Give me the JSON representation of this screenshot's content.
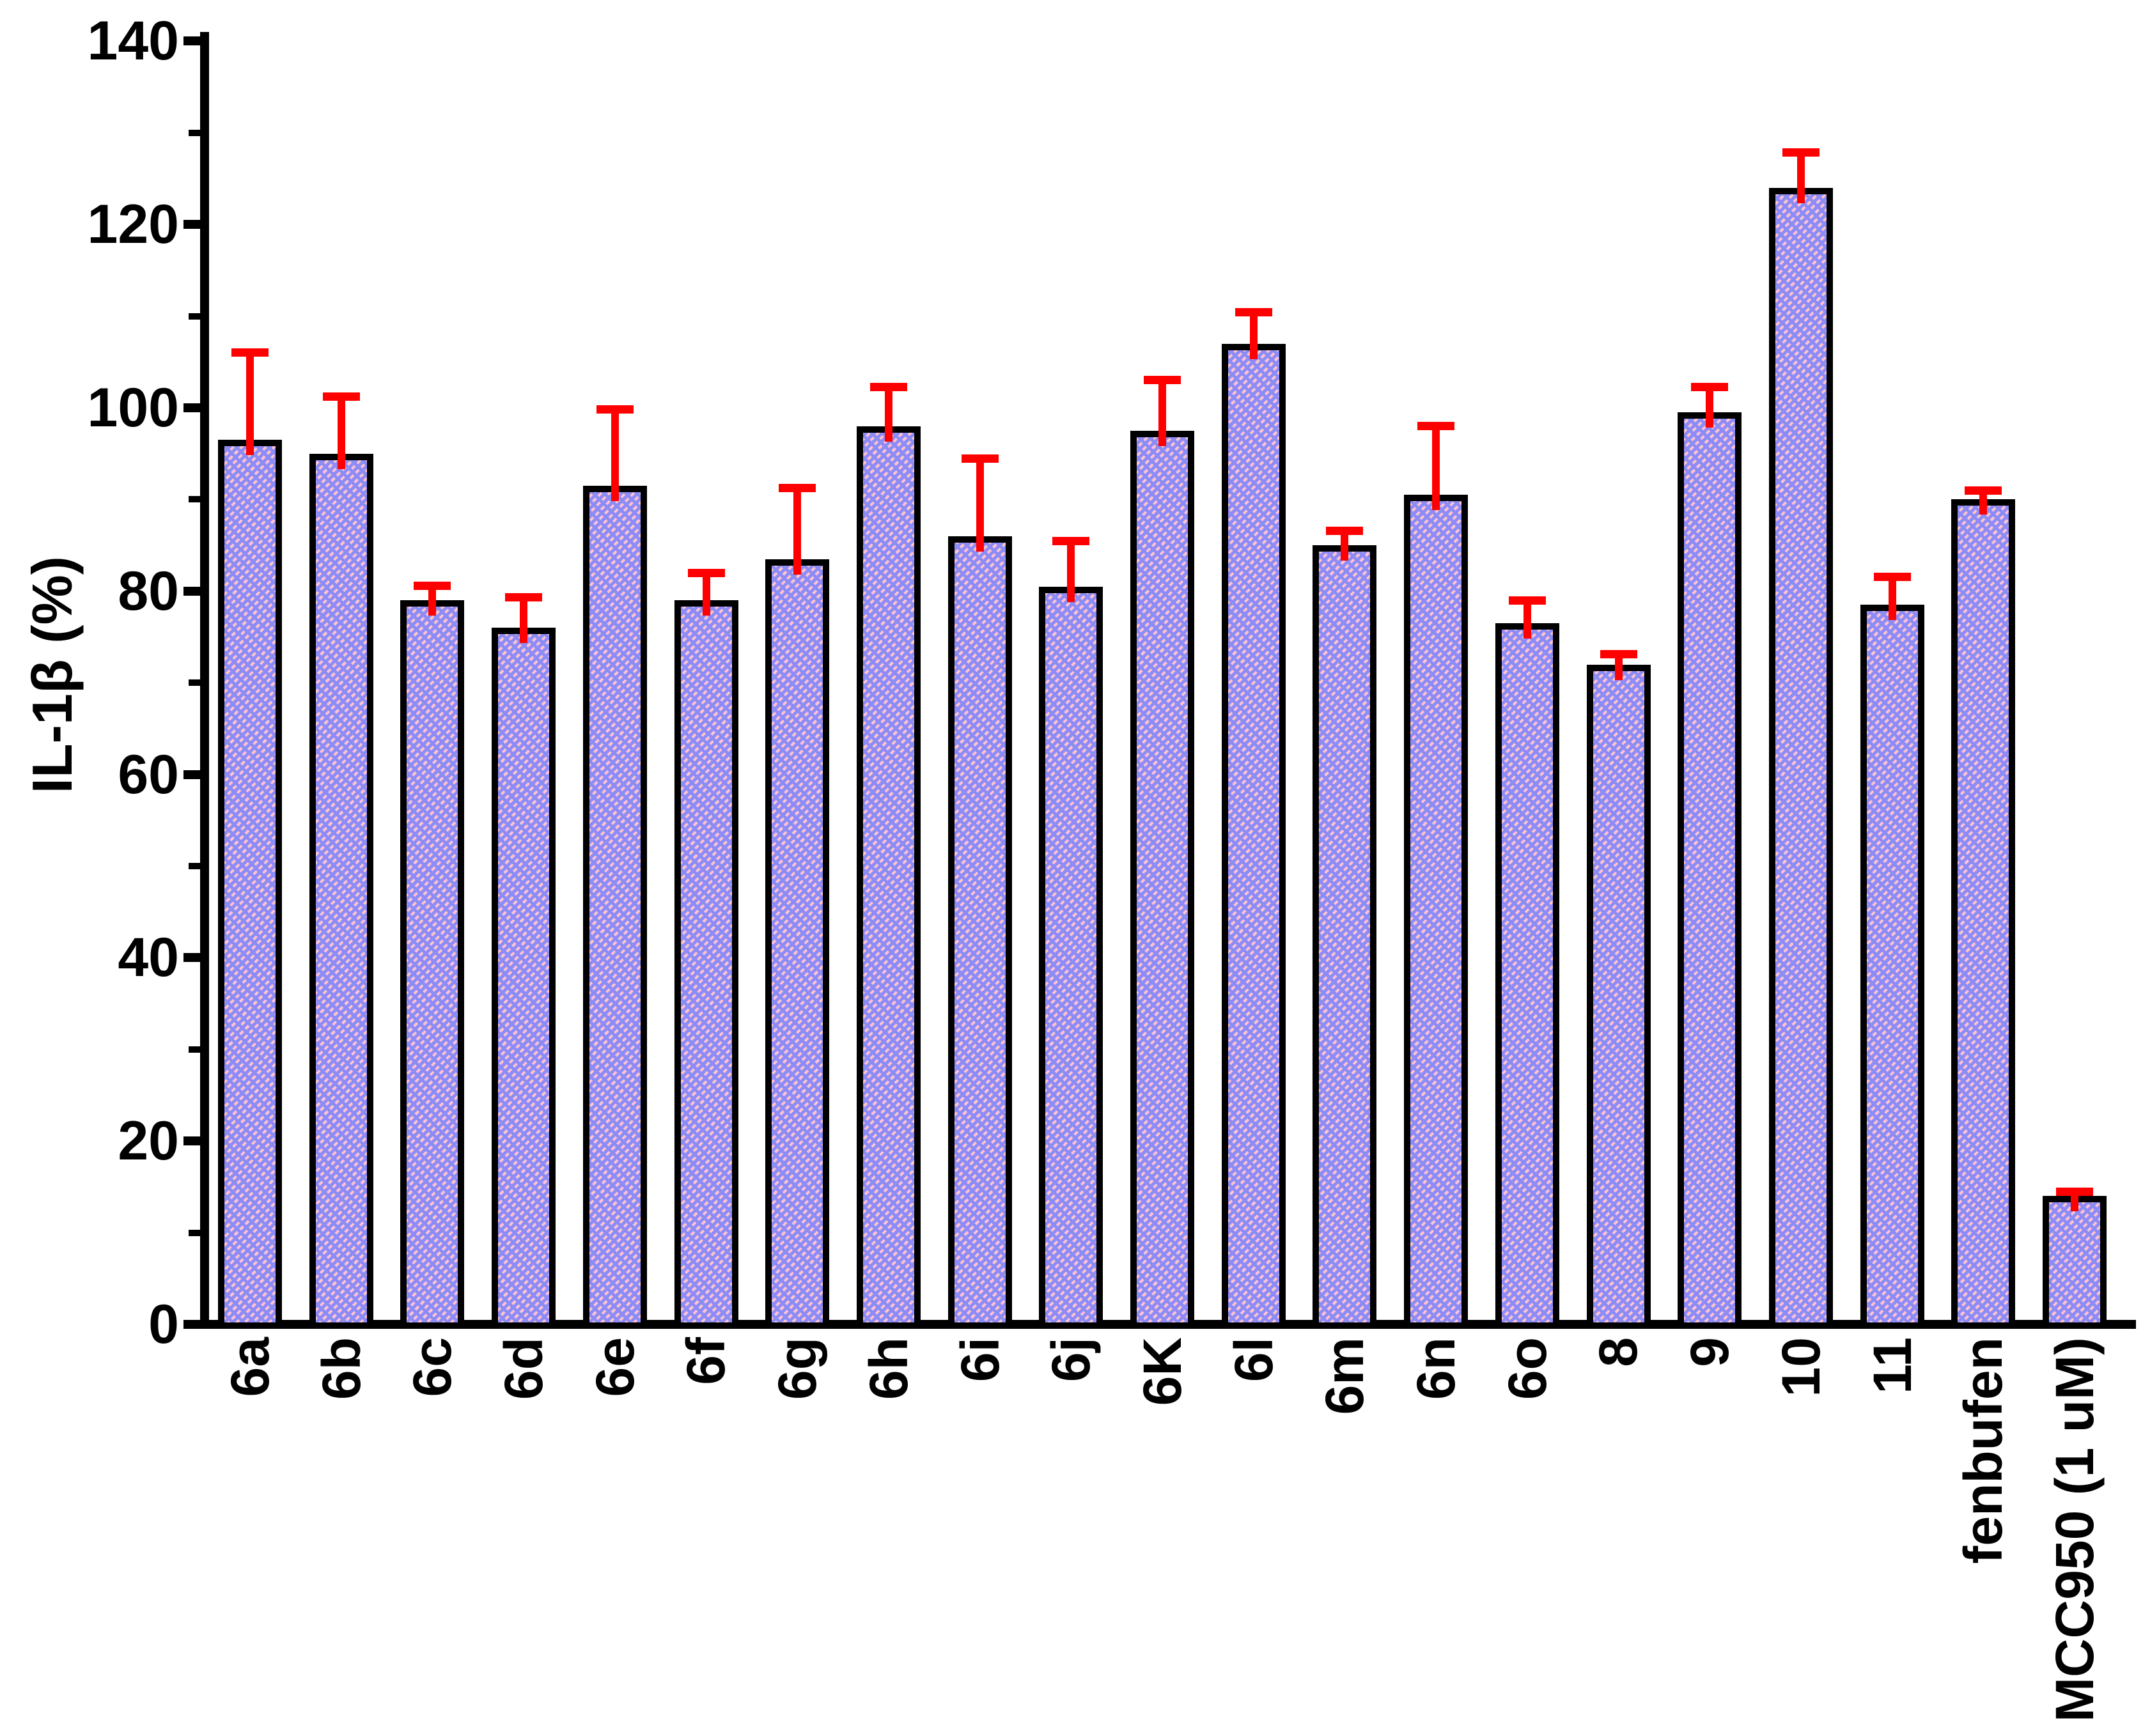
{
  "page": {
    "background": "#ffffff",
    "description": "Bar chart of IL-1beta (%) release for tested compounds with upward error bars"
  },
  "chart_data": {
    "type": "bar",
    "title": "",
    "xlabel": "",
    "ylabel": "IL-1β (%)",
    "ylim": [
      0,
      140
    ],
    "ytick_major": [
      0,
      20,
      40,
      60,
      80,
      100,
      120,
      140
    ],
    "ytick_minor": [
      10,
      30,
      50,
      70,
      90,
      110,
      130
    ],
    "grid": false,
    "legend": null,
    "categories": [
      "6a",
      "6b",
      "6c",
      "6d",
      "6e",
      "6f",
      "6g",
      "6h",
      "6i",
      "6j",
      "6K",
      "6l",
      "6m",
      "6n",
      "6o",
      "8",
      "9",
      "10",
      "11",
      "fenbufen",
      "MCC950 (1 uM)"
    ],
    "values": [
      96.5,
      95,
      79,
      76,
      91.5,
      79,
      83.5,
      98,
      86,
      80.5,
      97.5,
      107,
      85,
      90.5,
      76.5,
      72,
      99.5,
      124,
      78.5,
      90,
      14
    ],
    "errors_plus": [
      10,
      6.7,
      2,
      3.8,
      8.8,
      3.4,
      8.2,
      4.7,
      8.9,
      5.4,
      6,
      3.9,
      2,
      8,
      2.9,
      1.6,
      3.2,
      4.3,
      3.5,
      1.4,
      0.9
    ],
    "bar_style": {
      "fill": "#8c8cf6",
      "hatch_color": "#ffc3d0",
      "hatch_pattern": "diagonal-dashed",
      "border_color": "#000000",
      "border_px": 10
    },
    "error_style": {
      "color": "#ff0000",
      "direction": "up-only",
      "cap": true
    },
    "axis_color": "#000000",
    "tick_direction": "out"
  }
}
